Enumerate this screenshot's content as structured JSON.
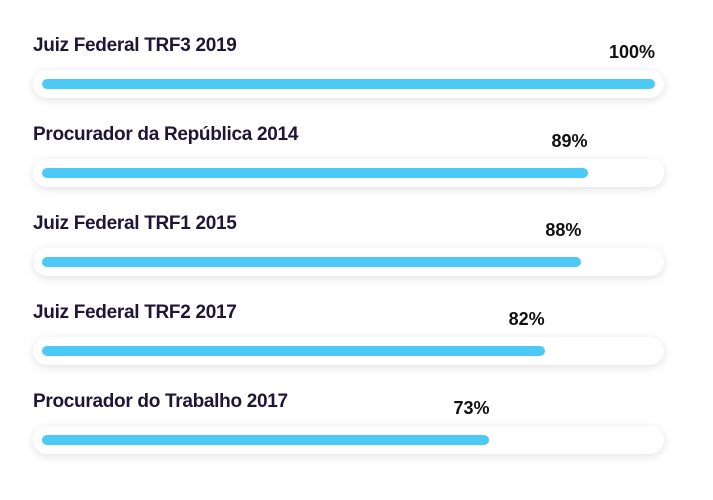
{
  "skills": [
    {
      "label": "Juiz Federal TRF3 2019",
      "percent_label": "100%",
      "value": 100
    },
    {
      "label": "Procurador da República 2014",
      "percent_label": "89%",
      "value": 89
    },
    {
      "label": "Juiz Federal TRF1 2015",
      "percent_label": "88%",
      "value": 88
    },
    {
      "label": "Juiz Federal TRF2 2017",
      "percent_label": "82%",
      "value": 82
    },
    {
      "label": "Procurador do Trabalho 2017",
      "percent_label": "73%",
      "value": 73
    }
  ],
  "colors": {
    "bar_fill": "#4cc9f5",
    "track": "#ffffff",
    "label_text": "#1f1535",
    "percent_text": "#111111"
  }
}
